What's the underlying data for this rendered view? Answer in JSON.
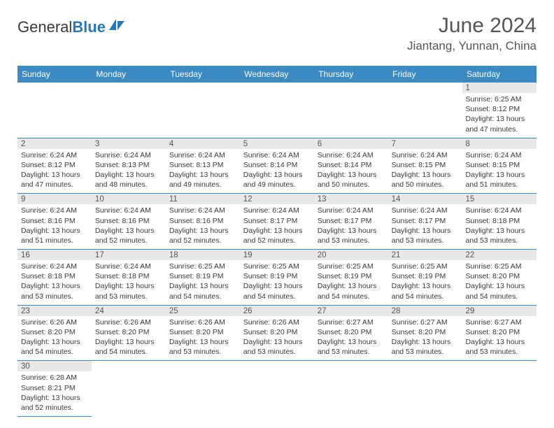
{
  "logo": {
    "text_dark": "General",
    "text_blue": "Blue"
  },
  "title": "June 2024",
  "location": "Jiantang, Yunnan, China",
  "colors": {
    "header_bg": "#3b8ac4",
    "header_fg": "#ffffff",
    "day_header_bg": "#e8e8e8",
    "empty_bg": "#f0f0f0",
    "text": "#3a3a3a"
  },
  "weekdays": [
    "Sunday",
    "Monday",
    "Tuesday",
    "Wednesday",
    "Thursday",
    "Friday",
    "Saturday"
  ],
  "first_weekday_index": 6,
  "days": [
    {
      "n": 1,
      "sunrise": "6:25 AM",
      "sunset": "8:12 PM",
      "daylight": "13 hours and 47 minutes."
    },
    {
      "n": 2,
      "sunrise": "6:24 AM",
      "sunset": "8:12 PM",
      "daylight": "13 hours and 47 minutes."
    },
    {
      "n": 3,
      "sunrise": "6:24 AM",
      "sunset": "8:13 PM",
      "daylight": "13 hours and 48 minutes."
    },
    {
      "n": 4,
      "sunrise": "6:24 AM",
      "sunset": "8:13 PM",
      "daylight": "13 hours and 49 minutes."
    },
    {
      "n": 5,
      "sunrise": "6:24 AM",
      "sunset": "8:14 PM",
      "daylight": "13 hours and 49 minutes."
    },
    {
      "n": 6,
      "sunrise": "6:24 AM",
      "sunset": "8:14 PM",
      "daylight": "13 hours and 50 minutes."
    },
    {
      "n": 7,
      "sunrise": "6:24 AM",
      "sunset": "8:15 PM",
      "daylight": "13 hours and 50 minutes."
    },
    {
      "n": 8,
      "sunrise": "6:24 AM",
      "sunset": "8:15 PM",
      "daylight": "13 hours and 51 minutes."
    },
    {
      "n": 9,
      "sunrise": "6:24 AM",
      "sunset": "8:16 PM",
      "daylight": "13 hours and 51 minutes."
    },
    {
      "n": 10,
      "sunrise": "6:24 AM",
      "sunset": "8:16 PM",
      "daylight": "13 hours and 52 minutes."
    },
    {
      "n": 11,
      "sunrise": "6:24 AM",
      "sunset": "8:16 PM",
      "daylight": "13 hours and 52 minutes."
    },
    {
      "n": 12,
      "sunrise": "6:24 AM",
      "sunset": "8:17 PM",
      "daylight": "13 hours and 52 minutes."
    },
    {
      "n": 13,
      "sunrise": "6:24 AM",
      "sunset": "8:17 PM",
      "daylight": "13 hours and 53 minutes."
    },
    {
      "n": 14,
      "sunrise": "6:24 AM",
      "sunset": "8:17 PM",
      "daylight": "13 hours and 53 minutes."
    },
    {
      "n": 15,
      "sunrise": "6:24 AM",
      "sunset": "8:18 PM",
      "daylight": "13 hours and 53 minutes."
    },
    {
      "n": 16,
      "sunrise": "6:24 AM",
      "sunset": "8:18 PM",
      "daylight": "13 hours and 53 minutes."
    },
    {
      "n": 17,
      "sunrise": "6:24 AM",
      "sunset": "8:18 PM",
      "daylight": "13 hours and 53 minutes."
    },
    {
      "n": 18,
      "sunrise": "6:25 AM",
      "sunset": "8:19 PM",
      "daylight": "13 hours and 54 minutes."
    },
    {
      "n": 19,
      "sunrise": "6:25 AM",
      "sunset": "8:19 PM",
      "daylight": "13 hours and 54 minutes."
    },
    {
      "n": 20,
      "sunrise": "6:25 AM",
      "sunset": "8:19 PM",
      "daylight": "13 hours and 54 minutes."
    },
    {
      "n": 21,
      "sunrise": "6:25 AM",
      "sunset": "8:19 PM",
      "daylight": "13 hours and 54 minutes."
    },
    {
      "n": 22,
      "sunrise": "6:25 AM",
      "sunset": "8:20 PM",
      "daylight": "13 hours and 54 minutes."
    },
    {
      "n": 23,
      "sunrise": "6:26 AM",
      "sunset": "8:20 PM",
      "daylight": "13 hours and 54 minutes."
    },
    {
      "n": 24,
      "sunrise": "6:26 AM",
      "sunset": "8:20 PM",
      "daylight": "13 hours and 54 minutes."
    },
    {
      "n": 25,
      "sunrise": "6:26 AM",
      "sunset": "8:20 PM",
      "daylight": "13 hours and 53 minutes."
    },
    {
      "n": 26,
      "sunrise": "6:26 AM",
      "sunset": "8:20 PM",
      "daylight": "13 hours and 53 minutes."
    },
    {
      "n": 27,
      "sunrise": "6:27 AM",
      "sunset": "8:20 PM",
      "daylight": "13 hours and 53 minutes."
    },
    {
      "n": 28,
      "sunrise": "6:27 AM",
      "sunset": "8:20 PM",
      "daylight": "13 hours and 53 minutes."
    },
    {
      "n": 29,
      "sunrise": "6:27 AM",
      "sunset": "8:20 PM",
      "daylight": "13 hours and 53 minutes."
    },
    {
      "n": 30,
      "sunrise": "6:28 AM",
      "sunset": "8:21 PM",
      "daylight": "13 hours and 52 minutes."
    }
  ],
  "labels": {
    "sunrise": "Sunrise:",
    "sunset": "Sunset:",
    "daylight": "Daylight:"
  }
}
